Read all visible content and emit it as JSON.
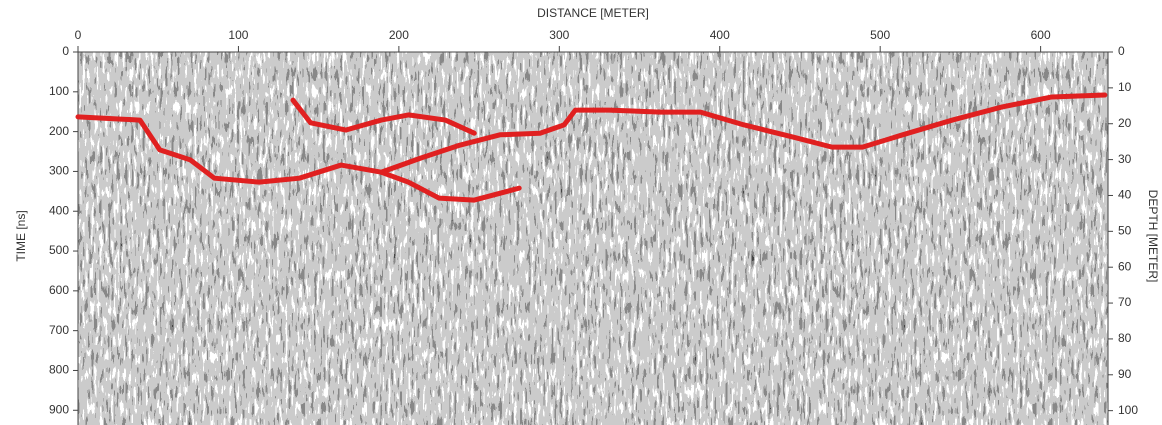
{
  "chart_data": {
    "type": "line",
    "x_label": "DISTANCE [METER]",
    "y_label": "TIME [ns]",
    "y2_label": "DEPTH [METER]",
    "xlim": [
      0,
      642
    ],
    "xticks": [
      0,
      100,
      200,
      300,
      400,
      500,
      600
    ],
    "ylim": [
      0,
      937
    ],
    "yticks": [
      0,
      100,
      200,
      300,
      400,
      500,
      600,
      700,
      800,
      900
    ],
    "y_inverted": true,
    "y2lim": [
      0,
      104
    ],
    "y2ticks": [
      0,
      10,
      20,
      30,
      40,
      50,
      60,
      70,
      80,
      90,
      100
    ],
    "series": [
      {
        "color": "#e02020",
        "x": [
          0,
          38.6,
          51,
          70,
          85,
          113,
          138,
          164,
          189,
          206,
          225,
          247,
          275
        ],
        "values": [
          163,
          171,
          246,
          271,
          317,
          327,
          317,
          284,
          302,
          327,
          367,
          372,
          342
        ]
      },
      {
        "color": "#e02020",
        "x": [
          189,
          214,
          238,
          263,
          288,
          303,
          310,
          331,
          363,
          388,
          415,
          446,
          470,
          489,
          514,
          545,
          576,
          607,
          640
        ],
        "values": [
          302,
          266,
          234,
          208,
          204,
          183,
          146,
          146,
          151,
          151,
          183,
          214,
          239,
          239,
          208,
          171,
          138,
          113,
          108
        ]
      },
      {
        "color": "#e02020",
        "x": [
          134,
          145,
          167,
          189,
          206,
          229,
          247
        ],
        "values": [
          121,
          178,
          196,
          171,
          158,
          171,
          204
        ]
      }
    ]
  }
}
